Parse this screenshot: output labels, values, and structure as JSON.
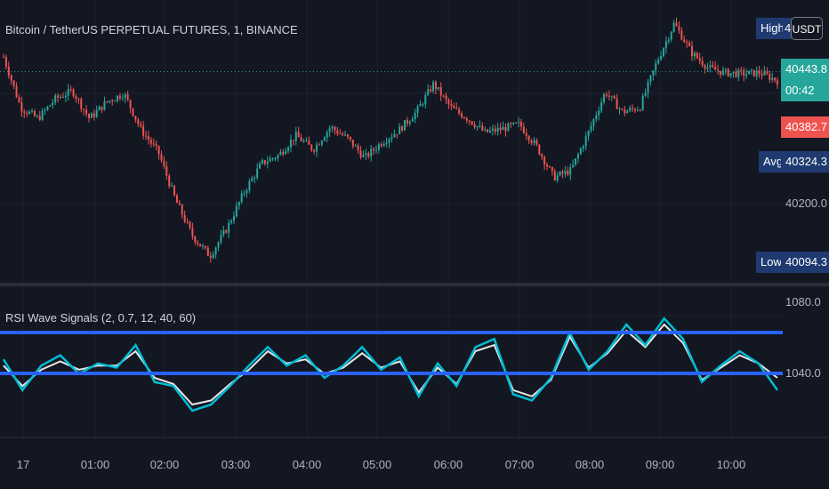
{
  "window": {
    "symbol_title": "Bitcoin / TetherUS PERPETUAL FUTURES, 1, BINANCE",
    "indicator_title": "RSI Wave Signals (2, 0.7, 12, 40, 60)",
    "currency_button": "USDT"
  },
  "price_labels": {
    "high_label": "High",
    "high_value": "4",
    "current_price": "40443.8",
    "countdown": "00:42",
    "red_price": "40382.7",
    "avg_label": "Avg",
    "avg_value": "40324.3",
    "tick_40200": "40200.0",
    "low_label": "Low",
    "low_value": "40094.3"
  },
  "indicator_labels": {
    "tick_1080": "1080.0",
    "tick_1040": "1040.0"
  },
  "colors": {
    "background": "#131722",
    "up_candle": "#26a69a",
    "down_candle": "#ef5350",
    "band_line": "#2962ff",
    "wave_cyan": "#00bcd4",
    "wave_white": "#e6e6e6",
    "label_navy": "#1e3a70"
  },
  "chart_data": [
    {
      "type": "line",
      "title": "Bitcoin / TetherUS PERPETUAL FUTURES, 1, BINANCE",
      "series": [
        {
          "name": "",
          "values": [
            40470,
            40380,
            40360,
            40395,
            40410,
            40360,
            40390,
            40405,
            40340,
            40300,
            40215,
            40150,
            40115,
            40165,
            40230,
            40280,
            40295,
            40330,
            40305,
            40345,
            40325,
            40290,
            40318,
            40340,
            40372,
            40422,
            40380,
            40360,
            40335,
            40342,
            40350,
            40310,
            40255,
            40268,
            40335,
            40408,
            40372,
            40380,
            40462,
            40530,
            40478,
            40450,
            40442,
            40440,
            40442,
            40428
          ]
        }
      ],
      "ylim": [
        40080,
        40540
      ],
      "y_ticks": [
        40200.0
      ],
      "x_ticks": [
        "17",
        "01:00",
        "02:00",
        "03:00",
        "04:00",
        "05:00",
        "06:00",
        "07:00",
        "08:00",
        "09:00",
        "10:00"
      ],
      "annotations": {
        "high_label": "High",
        "low": 40094.3,
        "avg": 40324.3,
        "current": 40443.8,
        "red": 40382.7
      }
    },
    {
      "type": "line",
      "title": "RSI Wave Signals (2, 0.7, 12, 40, 60)",
      "series": [
        {
          "name": "",
          "values": [
            1055,
            1040,
            1052,
            1057,
            1048,
            1053,
            1051,
            1062,
            1044,
            1042,
            1030,
            1033,
            1042,
            1052,
            1061,
            1052,
            1057,
            1046,
            1052,
            1061,
            1050,
            1056,
            1037,
            1053,
            1042,
            1061,
            1065,
            1038,
            1035,
            1046,
            1068,
            1050,
            1059,
            1072,
            1062,
            1075,
            1065,
            1044,
            1052,
            1059,
            1053,
            1040
          ]
        },
        {
          "name": "",
          "values": [
            1052,
            1042,
            1050,
            1054,
            1050,
            1052,
            1052,
            1059,
            1046,
            1043,
            1033,
            1035,
            1043,
            1050,
            1059,
            1053,
            1055,
            1048,
            1051,
            1058,
            1051,
            1054,
            1039,
            1051,
            1043,
            1059,
            1062,
            1040,
            1037,
            1045,
            1066,
            1051,
            1058,
            1069,
            1061,
            1072,
            1063,
            1045,
            1051,
            1057,
            1053,
            1046
          ]
        }
      ],
      "bands": [
        40,
        60
      ],
      "y_ticks": [
        1080.0,
        1040.0
      ]
    }
  ]
}
